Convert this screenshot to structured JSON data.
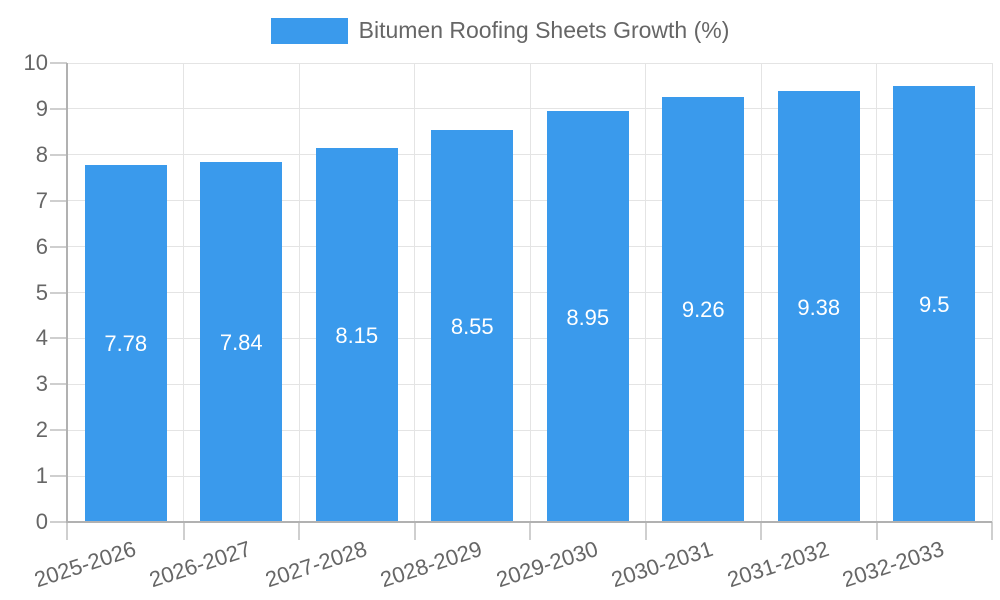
{
  "legend": {
    "label": "Bitumen Roofing Sheets Growth (%)"
  },
  "chart_data": {
    "type": "bar",
    "title": "",
    "categories": [
      "2025-2026",
      "2026-2027",
      "2027-2028",
      "2028-2029",
      "2029-2030",
      "2030-2031",
      "2031-2032",
      "2032-2033"
    ],
    "series": [
      {
        "name": "Bitumen Roofing Sheets Growth (%)",
        "values": [
          7.78,
          7.84,
          8.15,
          8.55,
          8.95,
          9.26,
          9.38,
          9.5
        ]
      }
    ],
    "value_labels": [
      "7.78",
      "7.84",
      "8.15",
      "8.55",
      "8.95",
      "9.26",
      "9.38",
      "9.5"
    ],
    "xlabel": "",
    "ylabel": "",
    "ylim": [
      0,
      10
    ],
    "ytick_step": 1,
    "ytick_labels": [
      "0",
      "1",
      "2",
      "3",
      "4",
      "5",
      "6",
      "7",
      "8",
      "9",
      "10"
    ],
    "grid": true,
    "vertical_grid_at_category_boundaries": true,
    "legend_position": "top-center",
    "x_label_rotation_deg": -18,
    "colors": {
      "bar": "#3a9aec",
      "grid": "#e4e4e4",
      "axis": "#b1b1b1",
      "tick": "#cfcfcf",
      "text": "#666666",
      "value_label": "#ffffff",
      "background": "#ffffff"
    }
  }
}
